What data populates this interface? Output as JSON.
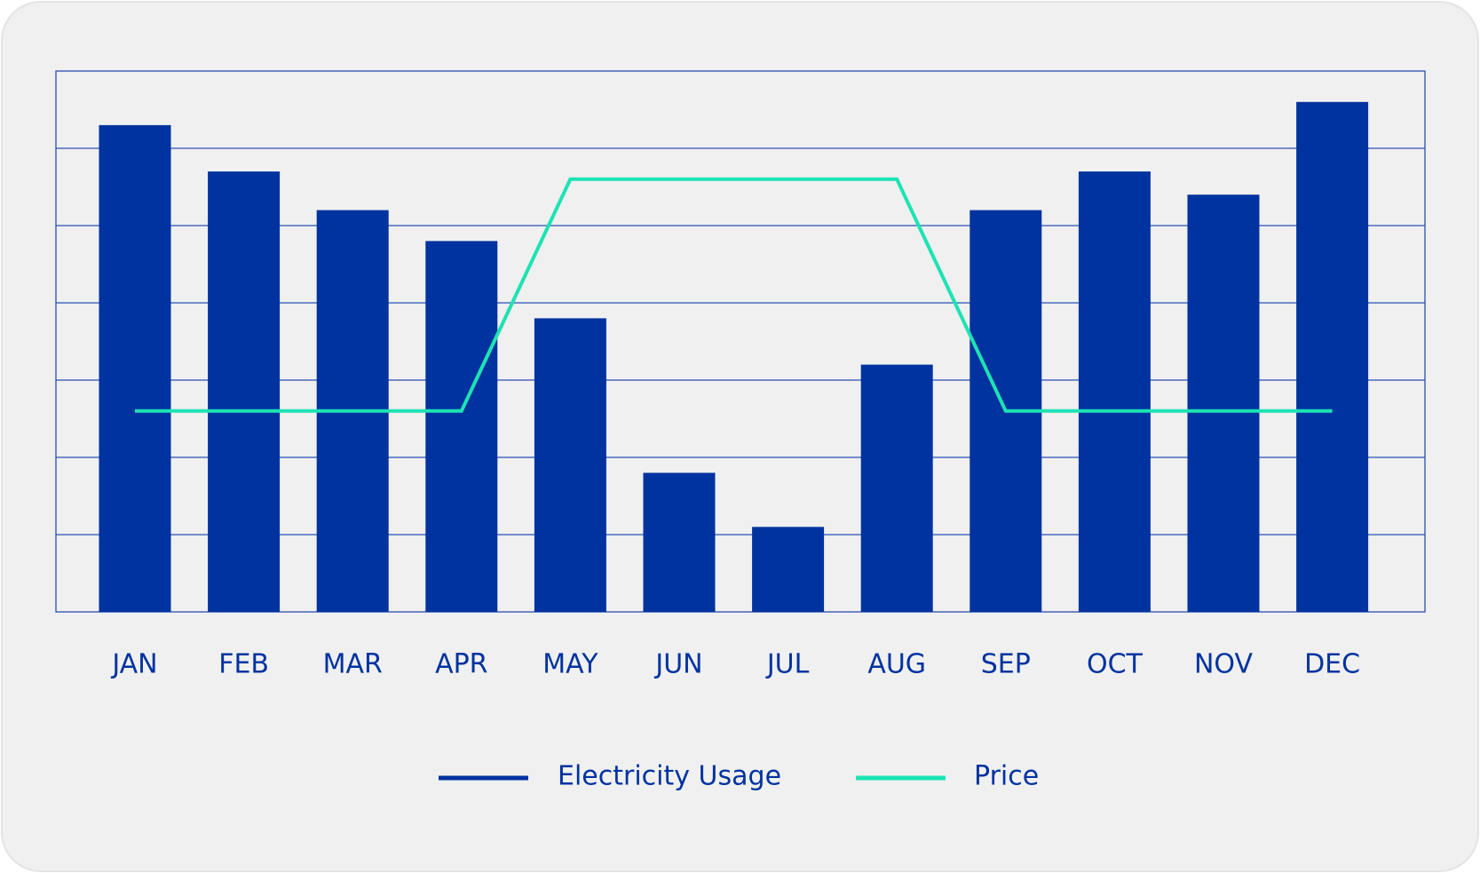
{
  "chart_data": {
    "type": "bar",
    "categories": [
      "JAN",
      "FEB",
      "MAR",
      "APR",
      "MAY",
      "JUN",
      "JUL",
      "AUG",
      "SEP",
      "OCT",
      "NOV",
      "DEC"
    ],
    "series": [
      {
        "name": "Electricity Usage",
        "type": "bar",
        "color": "#0033a0",
        "values": [
          6.3,
          5.7,
          5.2,
          4.8,
          3.8,
          1.8,
          1.1,
          3.2,
          5.2,
          5.7,
          5.4,
          6.6
        ]
      },
      {
        "name": "Price",
        "type": "line",
        "color": "#1de3b3",
        "values": [
          2.6,
          2.6,
          2.6,
          2.6,
          5.6,
          5.6,
          5.6,
          5.6,
          2.6,
          2.6,
          2.6,
          2.6
        ]
      }
    ],
    "ylim": [
      0,
      7
    ],
    "yticks": [
      1,
      2,
      3,
      4,
      5,
      6
    ],
    "grid": true,
    "legend": "bottom"
  }
}
